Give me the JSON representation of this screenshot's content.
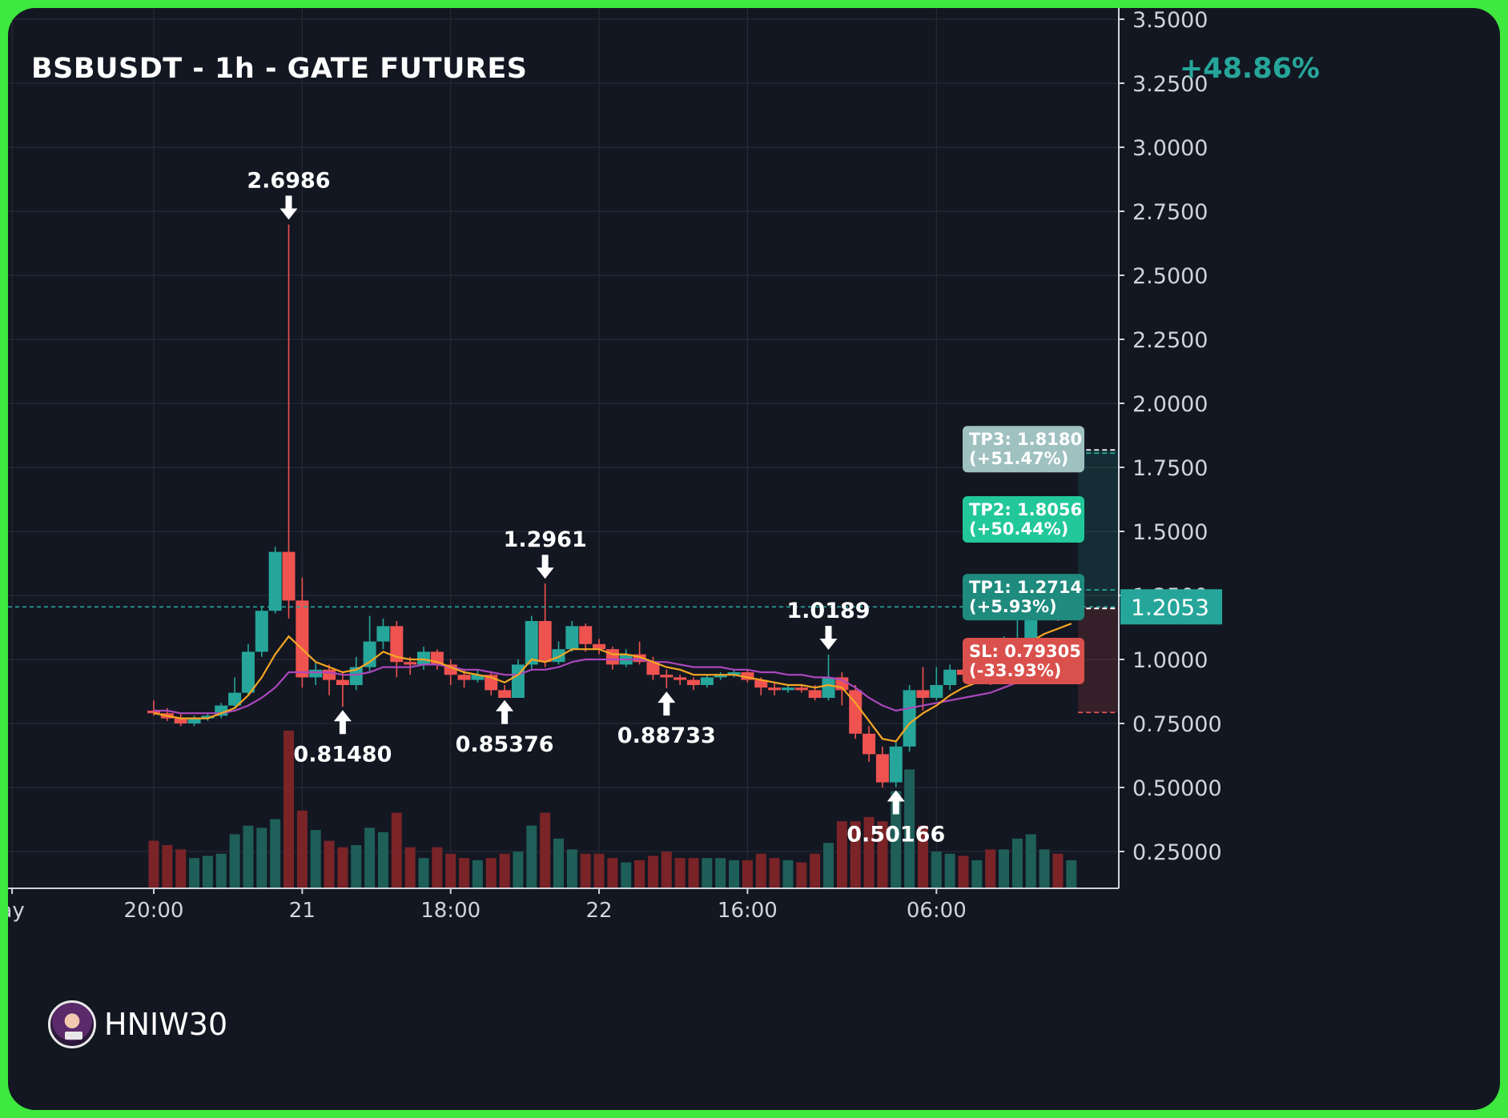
{
  "header": {
    "title": "BSBUSDT - 1h - GATE FUTURES",
    "change": "+48.86%"
  },
  "watermark": {
    "name": "HNIW30"
  },
  "colors": {
    "background": "#131722",
    "frame": "#3ee83e",
    "up": "#26a69a",
    "down": "#ef5350",
    "ema_fast": "#f5a623",
    "ema_slow": "#ab47bc"
  },
  "chart_data": {
    "type": "candlestick",
    "title": "BSBUSDT - 1h - GATE FUTURES",
    "ylim": [
      0.1,
      3.5
    ],
    "y_ticks": [
      {
        "v": 3.5,
        "label": "3.5000"
      },
      {
        "v": 3.25,
        "label": "3.2500"
      },
      {
        "v": 3.0,
        "label": "3.0000"
      },
      {
        "v": 2.75,
        "label": "2.7500"
      },
      {
        "v": 2.5,
        "label": "2.5000"
      },
      {
        "v": 2.25,
        "label": "2.2500"
      },
      {
        "v": 2.0,
        "label": "2.0000"
      },
      {
        "v": 1.75,
        "label": "1.7500"
      },
      {
        "v": 1.5,
        "label": "1.5000"
      },
      {
        "v": 1.25,
        "label": "1.2500"
      },
      {
        "v": 1.0,
        "label": "1.0000"
      },
      {
        "v": 0.75,
        "label": "0.75000"
      },
      {
        "v": 0.5,
        "label": "0.50000"
      },
      {
        "v": 0.25,
        "label": "0.25000"
      }
    ],
    "x_ticks": [
      {
        "i": -10.5,
        "label": "ay"
      },
      {
        "i": 0,
        "label": "20:00"
      },
      {
        "i": 11,
        "label": "21"
      },
      {
        "i": 22,
        "label": "18:00"
      },
      {
        "i": 33,
        "label": "22"
      },
      {
        "i": 44,
        "label": "16:00"
      },
      {
        "i": 58,
        "label": "06:00"
      }
    ],
    "candles": [
      [
        0.8,
        0.79,
        0.84,
        0.78,
        0.22
      ],
      [
        0.79,
        0.77,
        0.81,
        0.76,
        0.2
      ],
      [
        0.77,
        0.75,
        0.79,
        0.74,
        0.18
      ],
      [
        0.75,
        0.77,
        0.78,
        0.74,
        0.14
      ],
      [
        0.77,
        0.78,
        0.79,
        0.76,
        0.15
      ],
      [
        0.78,
        0.82,
        0.83,
        0.77,
        0.16
      ],
      [
        0.82,
        0.87,
        0.93,
        0.81,
        0.25
      ],
      [
        0.87,
        1.03,
        1.06,
        0.86,
        0.29
      ],
      [
        1.03,
        1.19,
        1.21,
        1.01,
        0.28
      ],
      [
        1.19,
        1.42,
        1.44,
        1.18,
        0.32
      ],
      [
        1.42,
        1.23,
        2.6986,
        1.16,
        0.73
      ],
      [
        1.23,
        0.93,
        1.32,
        0.89,
        0.36
      ],
      [
        0.93,
        0.96,
        0.99,
        0.9,
        0.27
      ],
      [
        0.96,
        0.92,
        0.98,
        0.86,
        0.22
      ],
      [
        0.92,
        0.9,
        0.95,
        0.8148,
        0.19
      ],
      [
        0.9,
        0.97,
        1.01,
        0.88,
        0.2
      ],
      [
        0.97,
        1.07,
        1.17,
        0.95,
        0.28
      ],
      [
        1.07,
        1.13,
        1.16,
        1.04,
        0.26
      ],
      [
        1.13,
        0.99,
        1.15,
        0.93,
        0.35
      ],
      [
        0.99,
        0.98,
        1.01,
        0.94,
        0.19
      ],
      [
        0.98,
        1.03,
        1.05,
        0.96,
        0.14
      ],
      [
        1.03,
        0.98,
        1.04,
        0.96,
        0.19
      ],
      [
        0.98,
        0.94,
        1.0,
        0.9,
        0.16
      ],
      [
        0.94,
        0.92,
        0.96,
        0.89,
        0.14
      ],
      [
        0.92,
        0.94,
        0.96,
        0.91,
        0.13
      ],
      [
        0.94,
        0.88,
        0.95,
        0.86,
        0.14
      ],
      [
        0.88,
        0.85,
        0.9,
        0.8538,
        0.16
      ],
      [
        0.85,
        0.98,
        1.0,
        0.86,
        0.17
      ],
      [
        0.98,
        1.15,
        1.17,
        0.96,
        0.29
      ],
      [
        1.15,
        0.99,
        1.2961,
        0.97,
        0.35
      ],
      [
        0.99,
        1.04,
        1.07,
        0.98,
        0.23
      ],
      [
        1.04,
        1.13,
        1.15,
        1.03,
        0.18
      ],
      [
        1.13,
        1.06,
        1.14,
        1.03,
        0.16
      ],
      [
        1.06,
        1.04,
        1.08,
        1.02,
        0.16
      ],
      [
        1.04,
        0.98,
        1.05,
        0.96,
        0.14
      ],
      [
        0.98,
        1.02,
        1.04,
        0.97,
        0.12
      ],
      [
        1.02,
        0.99,
        1.07,
        0.98,
        0.13
      ],
      [
        0.99,
        0.94,
        1.01,
        0.92,
        0.15
      ],
      [
        0.94,
        0.93,
        0.96,
        0.8873,
        0.17
      ],
      [
        0.93,
        0.92,
        0.94,
        0.9,
        0.14
      ],
      [
        0.92,
        0.9,
        0.93,
        0.88,
        0.14
      ],
      [
        0.9,
        0.93,
        0.94,
        0.89,
        0.14
      ],
      [
        0.93,
        0.94,
        0.95,
        0.92,
        0.14
      ],
      [
        0.94,
        0.95,
        0.96,
        0.93,
        0.13
      ],
      [
        0.95,
        0.92,
        0.96,
        0.91,
        0.13
      ],
      [
        0.92,
        0.89,
        0.93,
        0.86,
        0.16
      ],
      [
        0.89,
        0.88,
        0.91,
        0.86,
        0.14
      ],
      [
        0.88,
        0.89,
        0.9,
        0.87,
        0.13
      ],
      [
        0.89,
        0.88,
        0.9,
        0.87,
        0.12
      ],
      [
        0.88,
        0.85,
        0.9,
        0.84,
        0.16
      ],
      [
        0.85,
        0.93,
        1.0189,
        0.84,
        0.21
      ],
      [
        0.93,
        0.88,
        0.95,
        0.82,
        0.31
      ],
      [
        0.88,
        0.71,
        0.9,
        0.69,
        0.31
      ],
      [
        0.71,
        0.63,
        0.74,
        0.6,
        0.33
      ],
      [
        0.63,
        0.52,
        0.66,
        0.5,
        0.31
      ],
      [
        0.52,
        0.66,
        0.68,
        0.5017,
        0.45
      ],
      [
        0.66,
        0.88,
        0.9,
        0.64,
        0.55
      ],
      [
        0.88,
        0.85,
        0.97,
        0.8,
        0.29
      ],
      [
        0.85,
        0.9,
        0.97,
        0.84,
        0.17
      ],
      [
        0.9,
        0.96,
        0.98,
        0.88,
        0.16
      ],
      [
        0.96,
        0.94,
        1.0,
        0.92,
        0.15
      ],
      [
        0.94,
        0.96,
        0.99,
        0.93,
        0.13
      ],
      [
        0.96,
        0.94,
        0.98,
        0.9,
        0.18
      ],
      [
        0.94,
        1.06,
        1.09,
        0.93,
        0.18
      ],
      [
        1.06,
        1.08,
        1.18,
        1.05,
        0.23
      ],
      [
        1.08,
        1.18,
        1.19,
        1.07,
        0.25
      ],
      [
        1.18,
        1.19,
        1.21,
        1.16,
        0.18
      ],
      [
        1.19,
        1.17,
        1.2,
        1.15,
        0.16
      ],
      [
        1.17,
        1.2,
        1.23,
        1.16,
        0.13
      ]
    ],
    "ema_fast": [
      0.79,
      0.78,
      0.77,
      0.77,
      0.77,
      0.79,
      0.81,
      0.86,
      0.93,
      1.02,
      1.09,
      1.04,
      0.99,
      0.97,
      0.95,
      0.96,
      0.99,
      1.03,
      1.01,
      1.0,
      1.0,
      0.99,
      0.97,
      0.95,
      0.94,
      0.93,
      0.91,
      0.94,
      1.0,
      0.99,
      1.01,
      1.04,
      1.04,
      1.04,
      1.02,
      1.02,
      1.01,
      0.99,
      0.97,
      0.96,
      0.94,
      0.94,
      0.94,
      0.94,
      0.93,
      0.92,
      0.91,
      0.9,
      0.9,
      0.89,
      0.9,
      0.89,
      0.83,
      0.76,
      0.69,
      0.68,
      0.75,
      0.79,
      0.82,
      0.86,
      0.89,
      0.91,
      0.93,
      0.98,
      1.02,
      1.07,
      1.1,
      1.12,
      1.14
    ],
    "ema_slow": [
      0.8,
      0.8,
      0.79,
      0.79,
      0.79,
      0.79,
      0.8,
      0.82,
      0.85,
      0.89,
      0.95,
      0.95,
      0.95,
      0.95,
      0.94,
      0.94,
      0.95,
      0.97,
      0.97,
      0.97,
      0.98,
      0.98,
      0.97,
      0.96,
      0.96,
      0.95,
      0.94,
      0.94,
      0.96,
      0.96,
      0.97,
      0.99,
      1.0,
      1.0,
      1.0,
      1.0,
      1.0,
      0.99,
      0.99,
      0.98,
      0.97,
      0.97,
      0.97,
      0.96,
      0.96,
      0.95,
      0.95,
      0.94,
      0.94,
      0.93,
      0.93,
      0.92,
      0.89,
      0.85,
      0.82,
      0.8,
      0.81,
      0.82,
      0.83,
      0.84,
      0.85,
      0.86,
      0.87,
      0.89,
      0.91,
      0.94,
      0.96,
      0.98,
      1.0
    ],
    "annotations": [
      {
        "i": 10,
        "price": 2.6986,
        "label": "2.6986",
        "position": "above"
      },
      {
        "i": 14,
        "price": 0.8148,
        "label": "0.81480",
        "position": "below"
      },
      {
        "i": 26,
        "price": 0.8538,
        "label": "0.85376",
        "position": "below"
      },
      {
        "i": 29,
        "price": 1.2961,
        "label": "1.2961",
        "position": "above"
      },
      {
        "i": 38,
        "price": 0.8873,
        "label": "0.88733",
        "position": "below"
      },
      {
        "i": 50,
        "price": 1.0189,
        "label": "1.0189",
        "position": "above"
      },
      {
        "i": 55,
        "price": 0.5017,
        "label": "0.50166",
        "position": "below"
      }
    ],
    "current_price": {
      "value": 1.2053,
      "label": "1.2053"
    },
    "targets": [
      {
        "key": "tp3",
        "price": 1.818,
        "label": "TP3: 1.8180",
        "pct": "(+51.47%)",
        "color": "#9fc1c0"
      },
      {
        "key": "tp2",
        "price": 1.8056,
        "label": "TP2: 1.8056",
        "pct": "(+50.44%)",
        "color": "#22c89a"
      },
      {
        "key": "tp1",
        "price": 1.2714,
        "label": "TP1: 1.2714",
        "pct": "(+5.93%)",
        "color": "#1f8a7e"
      },
      {
        "key": "sl",
        "price": 0.79305,
        "label": "SL: 0.79305",
        "pct": "(-33.93%)",
        "color": "#d9504c"
      }
    ],
    "legend": "none",
    "grid": true
  }
}
